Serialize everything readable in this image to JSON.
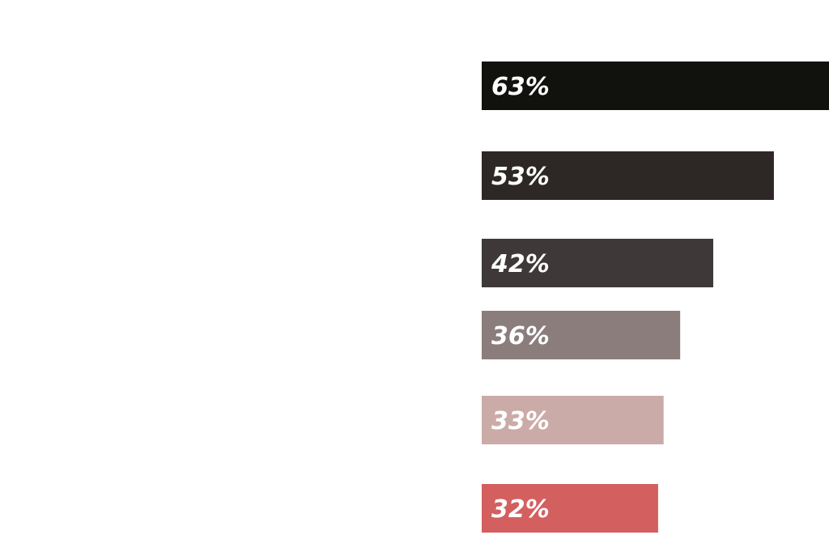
{
  "chart_data": {
    "type": "bar",
    "orientation": "horizontal",
    "values": [
      63,
      53,
      42,
      36,
      33,
      32
    ],
    "labels": [
      "63%",
      "53%",
      "42%",
      "36%",
      "33%",
      "32%"
    ],
    "unit": "%",
    "colors": [
      "#11110d",
      "#2d2826",
      "#3f3839",
      "#8a7d7c",
      "#cbaba7",
      "#d35f5f"
    ]
  }
}
